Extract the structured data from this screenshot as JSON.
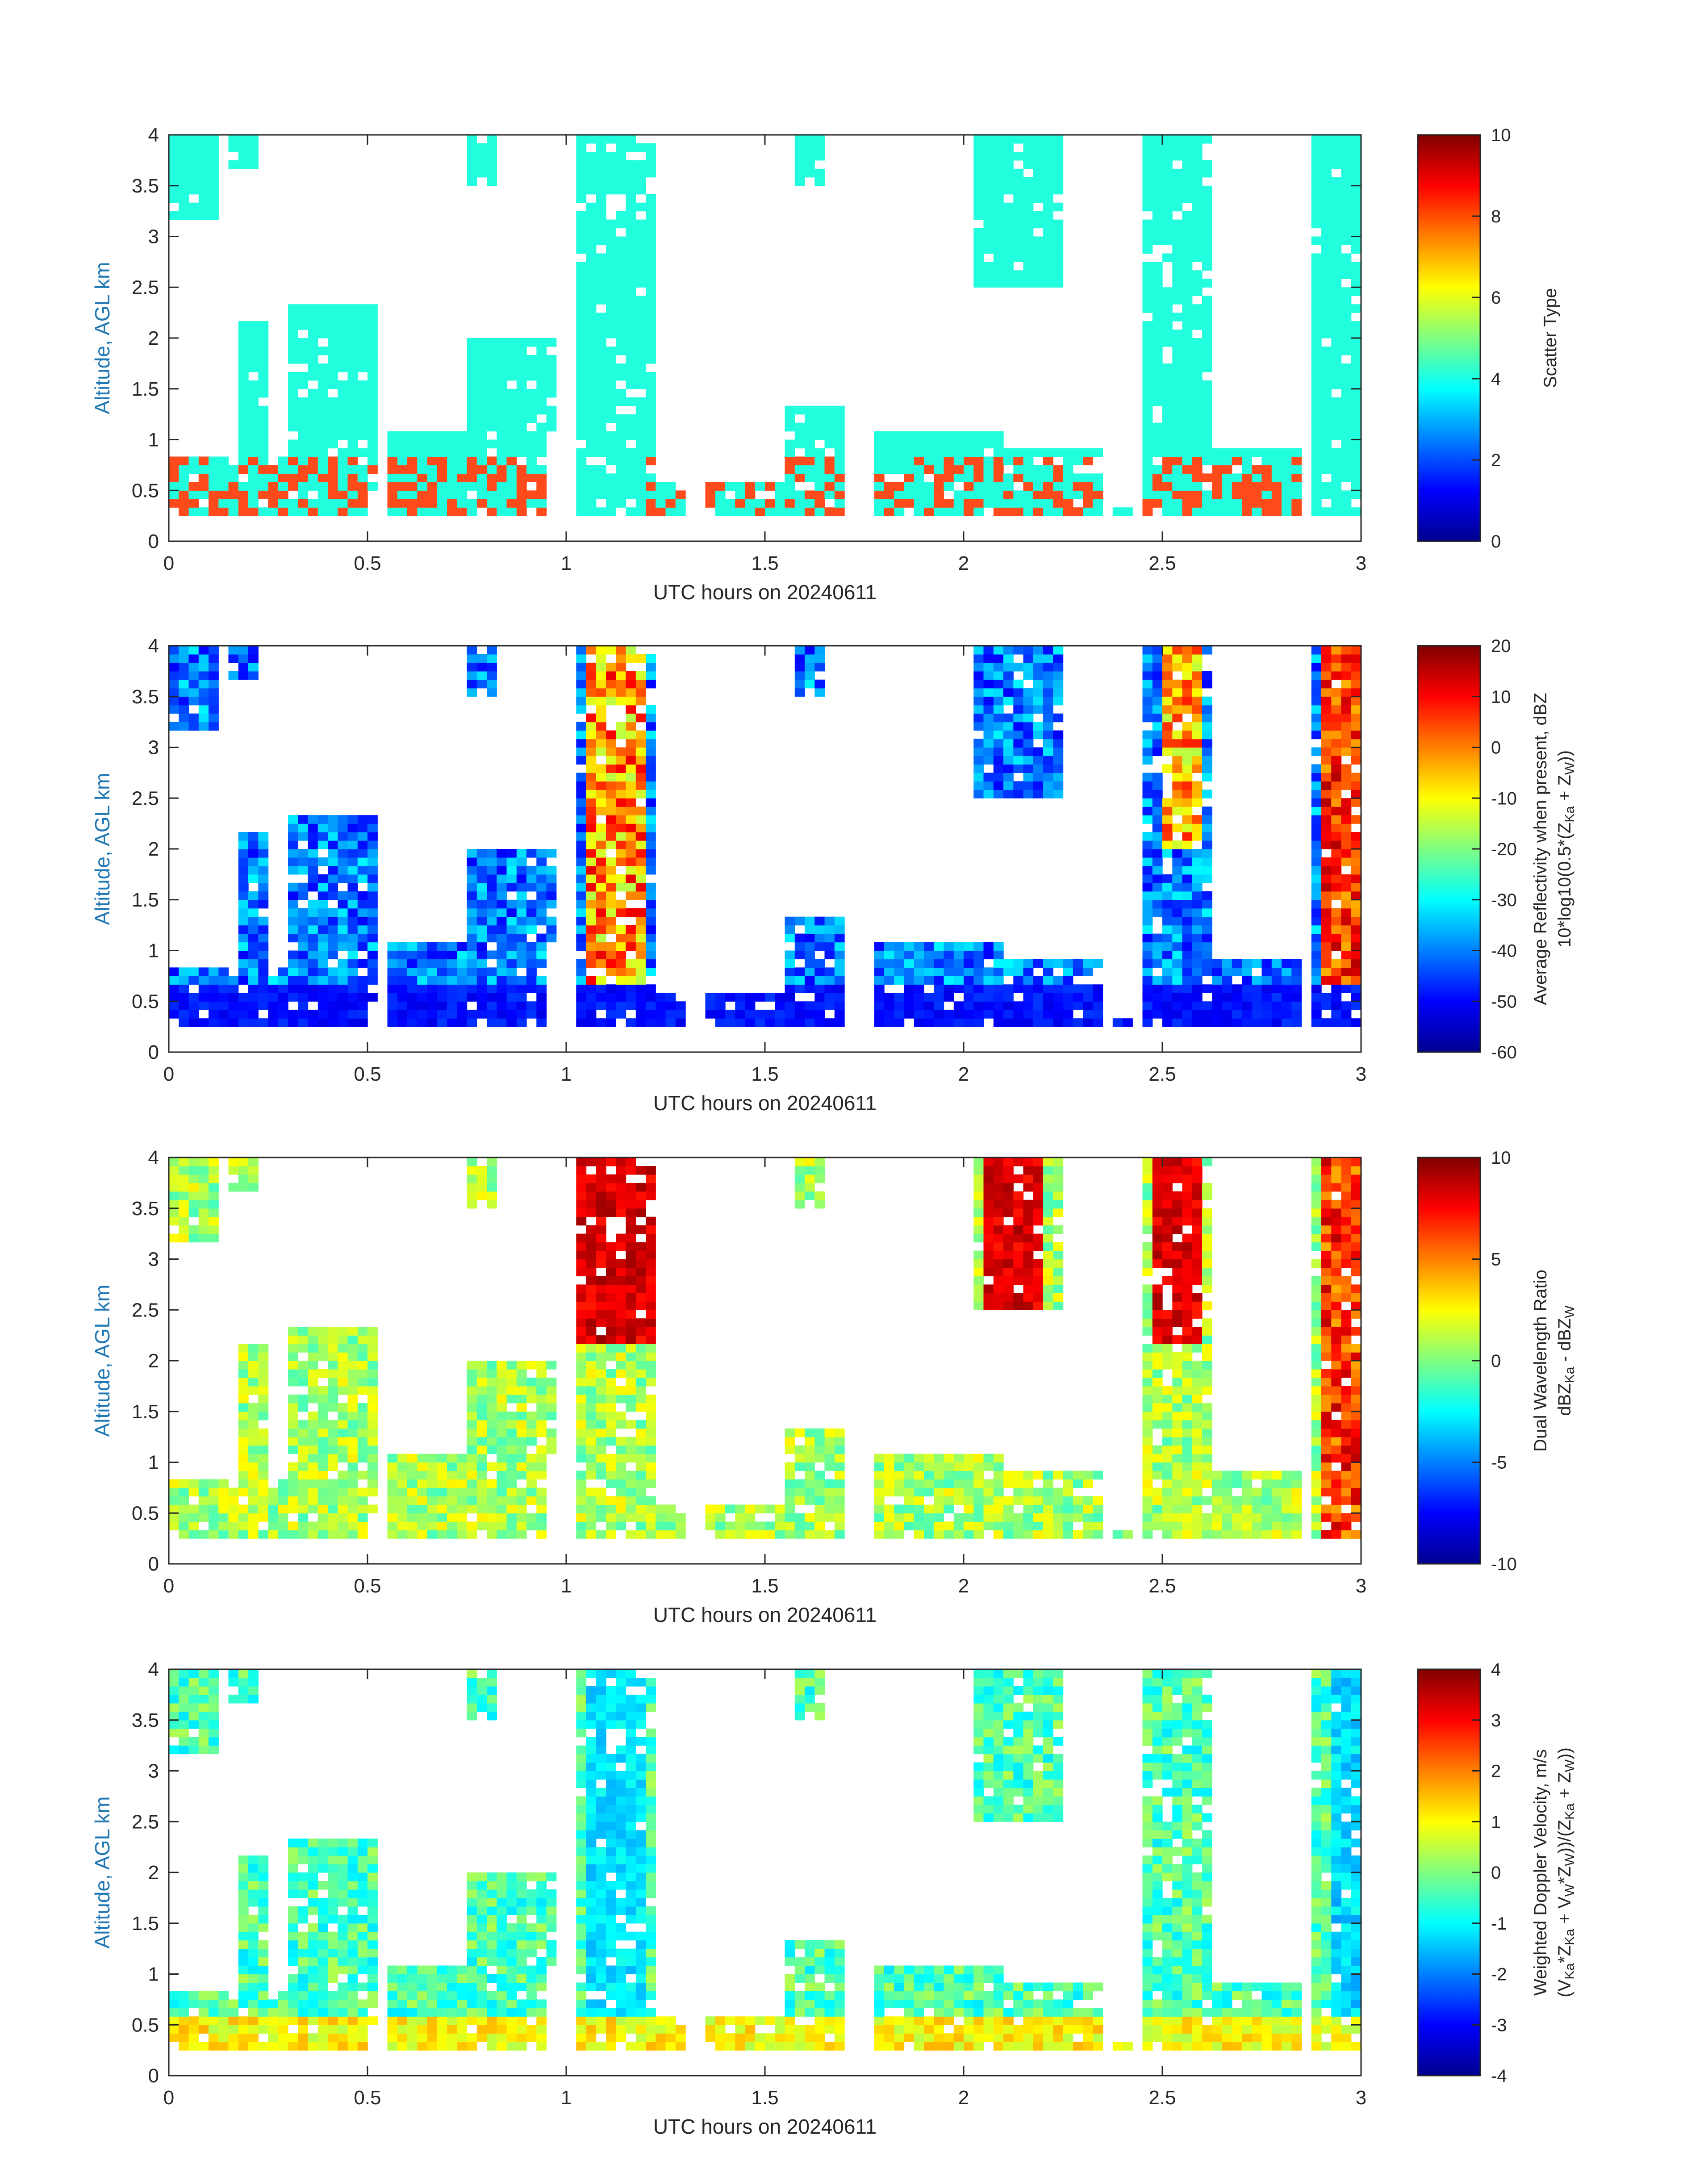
{
  "chart_data": [
    {
      "type": "heatmap",
      "xlabel": "UTC hours on 20240611",
      "ylabel": "Altitude, AGL km",
      "xlim": [
        0,
        3
      ],
      "ylim": [
        0,
        4
      ],
      "xticks": [
        "0",
        "0.5",
        "1",
        "1.5",
        "2",
        "2.5",
        "3"
      ],
      "yticks": [
        "0",
        "0.5",
        "1",
        "1.5",
        "2",
        "2.5",
        "3",
        "3.5",
        "4"
      ],
      "colorbar": {
        "label_lines": [
          "Scatter Type"
        ],
        "range": [
          0,
          10
        ],
        "ticks": [
          "0",
          "2",
          "4",
          "6",
          "8",
          "10"
        ]
      }
    },
    {
      "type": "heatmap",
      "xlabel": "UTC hours on 20240611",
      "ylabel": "Altitude, AGL km",
      "xlim": [
        0,
        3
      ],
      "ylim": [
        0,
        4
      ],
      "xticks": [
        "0",
        "0.5",
        "1",
        "1.5",
        "2",
        "2.5",
        "3"
      ],
      "yticks": [
        "0",
        "0.5",
        "1",
        "1.5",
        "2",
        "2.5",
        "3",
        "3.5",
        "4"
      ],
      "colorbar": {
        "label_lines": [
          "Average Reflectivity when present, dBZ",
          "10*log10(0.5*(Z",
          "Ka",
          " + Z",
          "W",
          "))"
        ],
        "range": [
          -60,
          20
        ],
        "ticks": [
          "-60",
          "-50",
          "-40",
          "-30",
          "-20",
          "-10",
          "0",
          "10",
          "20"
        ]
      }
    },
    {
      "type": "heatmap",
      "xlabel": "UTC hours on 20240611",
      "ylabel": "Altitude, AGL km",
      "xlim": [
        0,
        3
      ],
      "ylim": [
        0,
        4
      ],
      "xticks": [
        "0",
        "0.5",
        "1",
        "1.5",
        "2",
        "2.5",
        "3"
      ],
      "yticks": [
        "0",
        "0.5",
        "1",
        "1.5",
        "2",
        "2.5",
        "3",
        "3.5",
        "4"
      ],
      "colorbar": {
        "label_lines": [
          "Dual Wavelength Ratio",
          "dBZ",
          "Ka",
          " - dBZ",
          "W",
          ""
        ],
        "range": [
          -10,
          10
        ],
        "ticks": [
          "-10",
          "-5",
          "0",
          "5",
          "10"
        ]
      }
    },
    {
      "type": "heatmap",
      "xlabel": "UTC hours on 20240611",
      "ylabel": "Altitude, AGL km",
      "xlim": [
        0,
        3
      ],
      "ylim": [
        0,
        4
      ],
      "xticks": [
        "0",
        "0.5",
        "1",
        "1.5",
        "2",
        "2.5",
        "3"
      ],
      "yticks": [
        "0",
        "0.5",
        "1",
        "1.5",
        "2",
        "2.5",
        "3",
        "3.5",
        "4"
      ],
      "colorbar": {
        "label_lines": [
          "Weighted Doppler Velocity, m/s",
          "(V",
          "Ka",
          "*Z",
          "Ka",
          " + V",
          "W",
          "*Z",
          "W",
          "))/(Z",
          "Ka",
          " + Z",
          "W",
          "))"
        ],
        "range": [
          -4,
          4
        ],
        "ticks": [
          "-4",
          "-3",
          "-2",
          "-1",
          "0",
          "1",
          "2",
          "3",
          "4"
        ]
      }
    }
  ]
}
